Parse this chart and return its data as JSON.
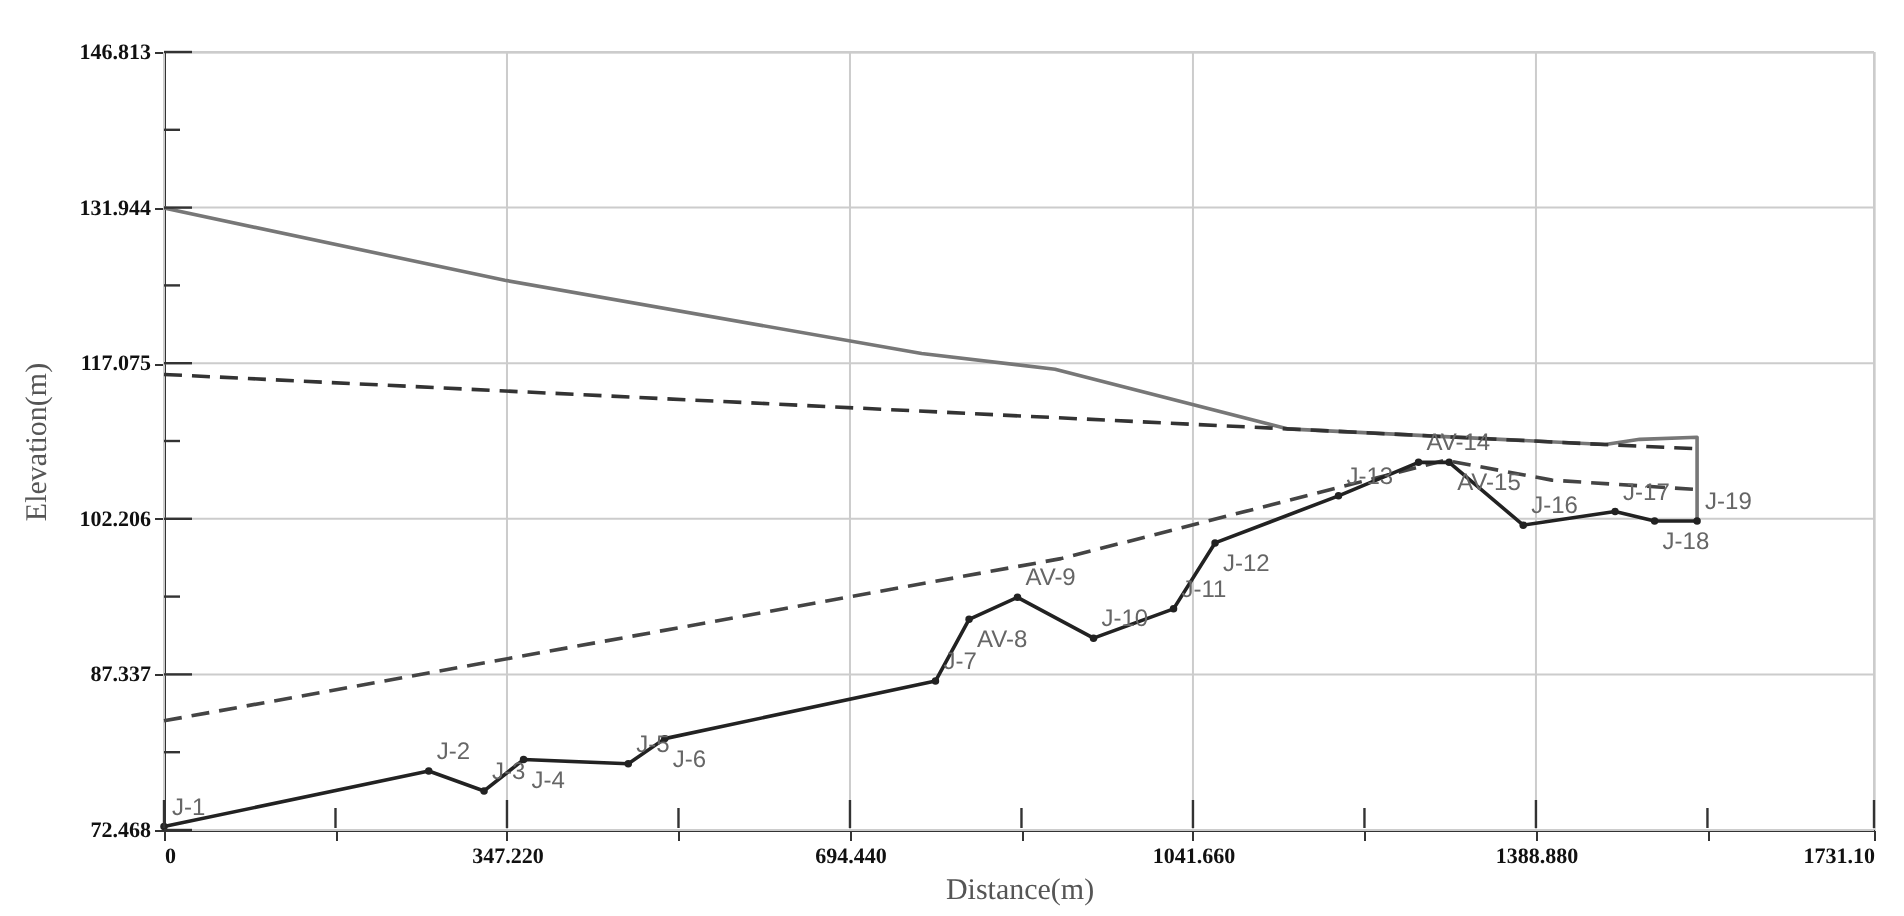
{
  "chart_data": {
    "type": "line",
    "xlabel": "Distance(m)",
    "ylabel": "Elevation(m)",
    "xlim": [
      0,
      1731.1
    ],
    "ylim": [
      72.468,
      146.813
    ],
    "xticks": [
      0,
      {
        "value": 173.61,
        "label": null
      },
      {
        "value": 347.22,
        "label": "347.220"
      },
      {
        "value": 520.83,
        "label": null
      },
      {
        "value": 694.44,
        "label": "694.440"
      },
      {
        "value": 868.05,
        "label": null
      },
      {
        "value": 1041.66,
        "label": "1041.660"
      },
      {
        "value": 1215.27,
        "label": null
      },
      {
        "value": 1388.88,
        "label": "1388.880"
      },
      {
        "value": 1562.49,
        "label": null
      },
      {
        "value": 1731.1,
        "label": "1731.10"
      }
    ],
    "yticks": [
      72.468,
      {
        "value": 79.9025,
        "label": null
      },
      87.337,
      {
        "value": 94.7715,
        "label": null
      },
      102.206,
      {
        "value": 109.6405,
        "label": null
      },
      117.075,
      {
        "value": 124.5095,
        "label": null
      },
      131.944,
      {
        "value": 139.3785,
        "label": null
      },
      146.813
    ],
    "grid": true,
    "series": [
      {
        "color": "#777777",
        "line_style": "solid",
        "marker": "none",
        "x": [
          0,
          345,
          767,
          902,
          1137,
          1459,
          1494,
          1552,
          1552
        ],
        "values": [
          131.9,
          125.0,
          118.0,
          116.5,
          110.8,
          109.3,
          109.8,
          110.0,
          102.0
        ]
      },
      {
        "color": "#333333",
        "line_style": "dashed",
        "marker": "none",
        "x": [
          0,
          1137,
          1459,
          1552
        ],
        "values": [
          116.0,
          110.8,
          109.3,
          108.9
        ]
      },
      {
        "color": "#444444",
        "line_style": "dashed",
        "marker": "none",
        "x": [
          0,
          908,
          1297,
          1405,
          1552
        ],
        "values": [
          82.9,
          98.4,
          107.8,
          105.9,
          105.0
        ]
      },
      {
        "color": "#222222",
        "line_style": "solid",
        "marker": "circle",
        "x": [
          0,
          268,
          324,
          364,
          470,
          507,
          781,
          815,
          864,
          941,
          1022,
          1064,
          1189,
          1270,
          1301,
          1376,
          1469,
          1509,
          1552
        ],
        "values": [
          72.8,
          78.1,
          76.2,
          79.2,
          78.8,
          81.2,
          86.7,
          92.6,
          94.7,
          90.8,
          93.6,
          99.9,
          104.4,
          107.6,
          107.6,
          101.6,
          102.9,
          102.0,
          102.0
        ]
      }
    ],
    "annotations": [
      {
        "text": "J-1",
        "x": 0,
        "y": 72.8
      },
      {
        "text": "J-2",
        "x": 268,
        "y": 78.1
      },
      {
        "text": "J-3",
        "x": 324,
        "y": 76.2
      },
      {
        "text": "J-4",
        "x": 364,
        "y": 79.2
      },
      {
        "text": "J-5",
        "x": 470,
        "y": 78.8
      },
      {
        "text": "J-6",
        "x": 507,
        "y": 81.2
      },
      {
        "text": "J-7",
        "x": 781,
        "y": 86.7
      },
      {
        "text": "AV-8",
        "x": 815,
        "y": 92.6
      },
      {
        "text": "AV-9",
        "x": 864,
        "y": 94.7
      },
      {
        "text": "J-10",
        "x": 941,
        "y": 90.8
      },
      {
        "text": "J-11",
        "x": 1022,
        "y": 93.6
      },
      {
        "text": "J-12",
        "x": 1064,
        "y": 99.9
      },
      {
        "text": "J-13",
        "x": 1189,
        "y": 104.4
      },
      {
        "text": "AV-14",
        "x": 1270,
        "y": 107.6
      },
      {
        "text": "AV-15",
        "x": 1301,
        "y": 107.6
      },
      {
        "text": "J-16",
        "x": 1376,
        "y": 101.6
      },
      {
        "text": "J-17",
        "x": 1469,
        "y": 102.9
      },
      {
        "text": "J-18",
        "x": 1509,
        "y": 102.0
      },
      {
        "text": "J-19",
        "x": 1552,
        "y": 102.0
      }
    ]
  }
}
